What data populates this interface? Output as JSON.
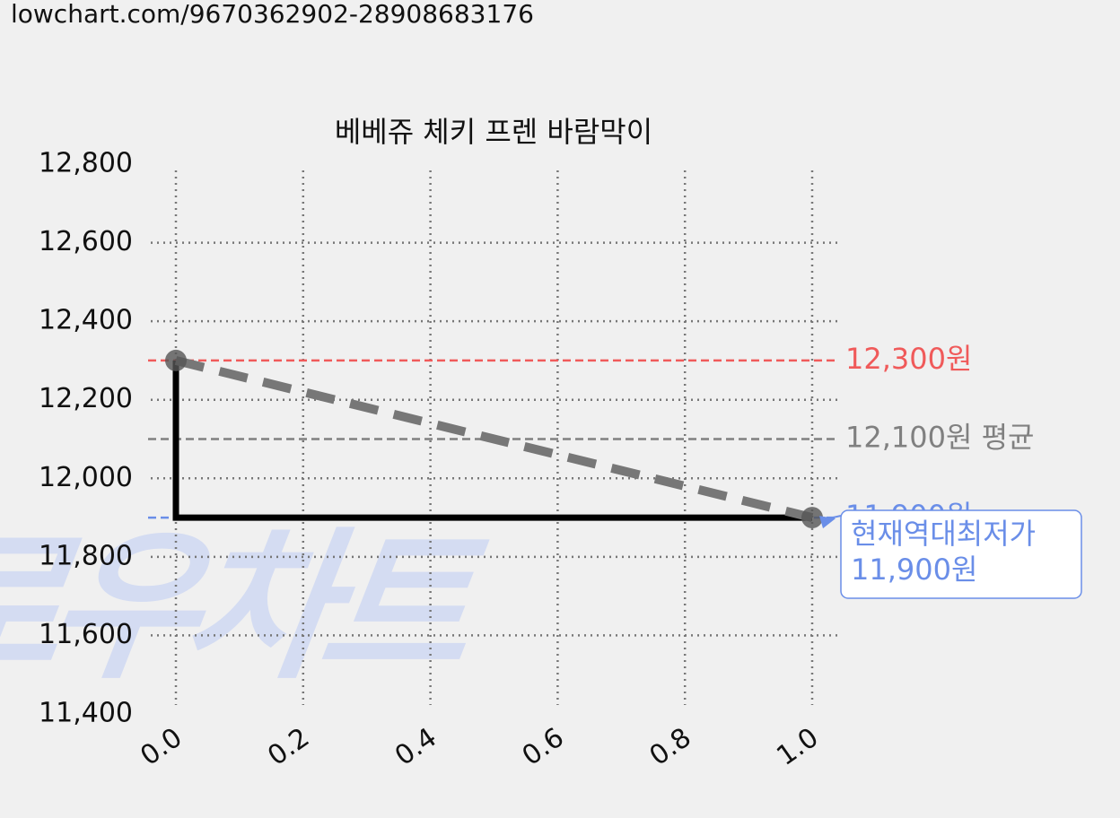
{
  "url": "lowchart.com/9670362902-28908683176",
  "chart_data": {
    "type": "line",
    "title": "베베쥬 체키 프렌 바람막이",
    "watermark": "로우차트",
    "xlim": [
      -0.05,
      1.05
    ],
    "xticks": [
      {
        "value": 0,
        "label": "0.0"
      },
      0.2,
      0.4,
      0.6,
      0.8,
      {
        "value": 1,
        "label": "1.0"
      }
    ],
    "ylim": [
      11400,
      12800
    ],
    "yticks": [
      {
        "value": 11400,
        "label": "11,400"
      },
      {
        "value": 11600,
        "label": "11,600"
      },
      {
        "value": 11800,
        "label": "11,800"
      },
      {
        "value": 12000,
        "label": "12,000"
      },
      {
        "value": 12200,
        "label": "12,200"
      },
      {
        "value": 12400,
        "label": "12,400"
      },
      {
        "value": 12600,
        "label": "12,600"
      },
      {
        "value": 12800,
        "label": "12,800"
      }
    ],
    "grid": true,
    "series": [
      {
        "color": "#000000",
        "x": [
          0,
          0,
          1
        ],
        "values": [
          12300,
          11900,
          11900
        ]
      },
      {
        "color": "#777777",
        "dashed": true,
        "markers": true,
        "x": [
          0,
          1
        ],
        "values": [
          12300,
          11900
        ]
      }
    ],
    "hlines": [
      {
        "value": 12300,
        "label": "12,300원",
        "color": "#f05a5a"
      },
      {
        "value": 12100,
        "label": "12,100원 평균",
        "color": "#808080"
      },
      {
        "value": 11900,
        "label": "11,900원",
        "color": "#6a8ee8"
      }
    ],
    "annotation": {
      "lines": [
        "현재역대최저가",
        "11,900원"
      ],
      "x": 1,
      "y": 11900,
      "color": "#6a8ee8"
    }
  }
}
